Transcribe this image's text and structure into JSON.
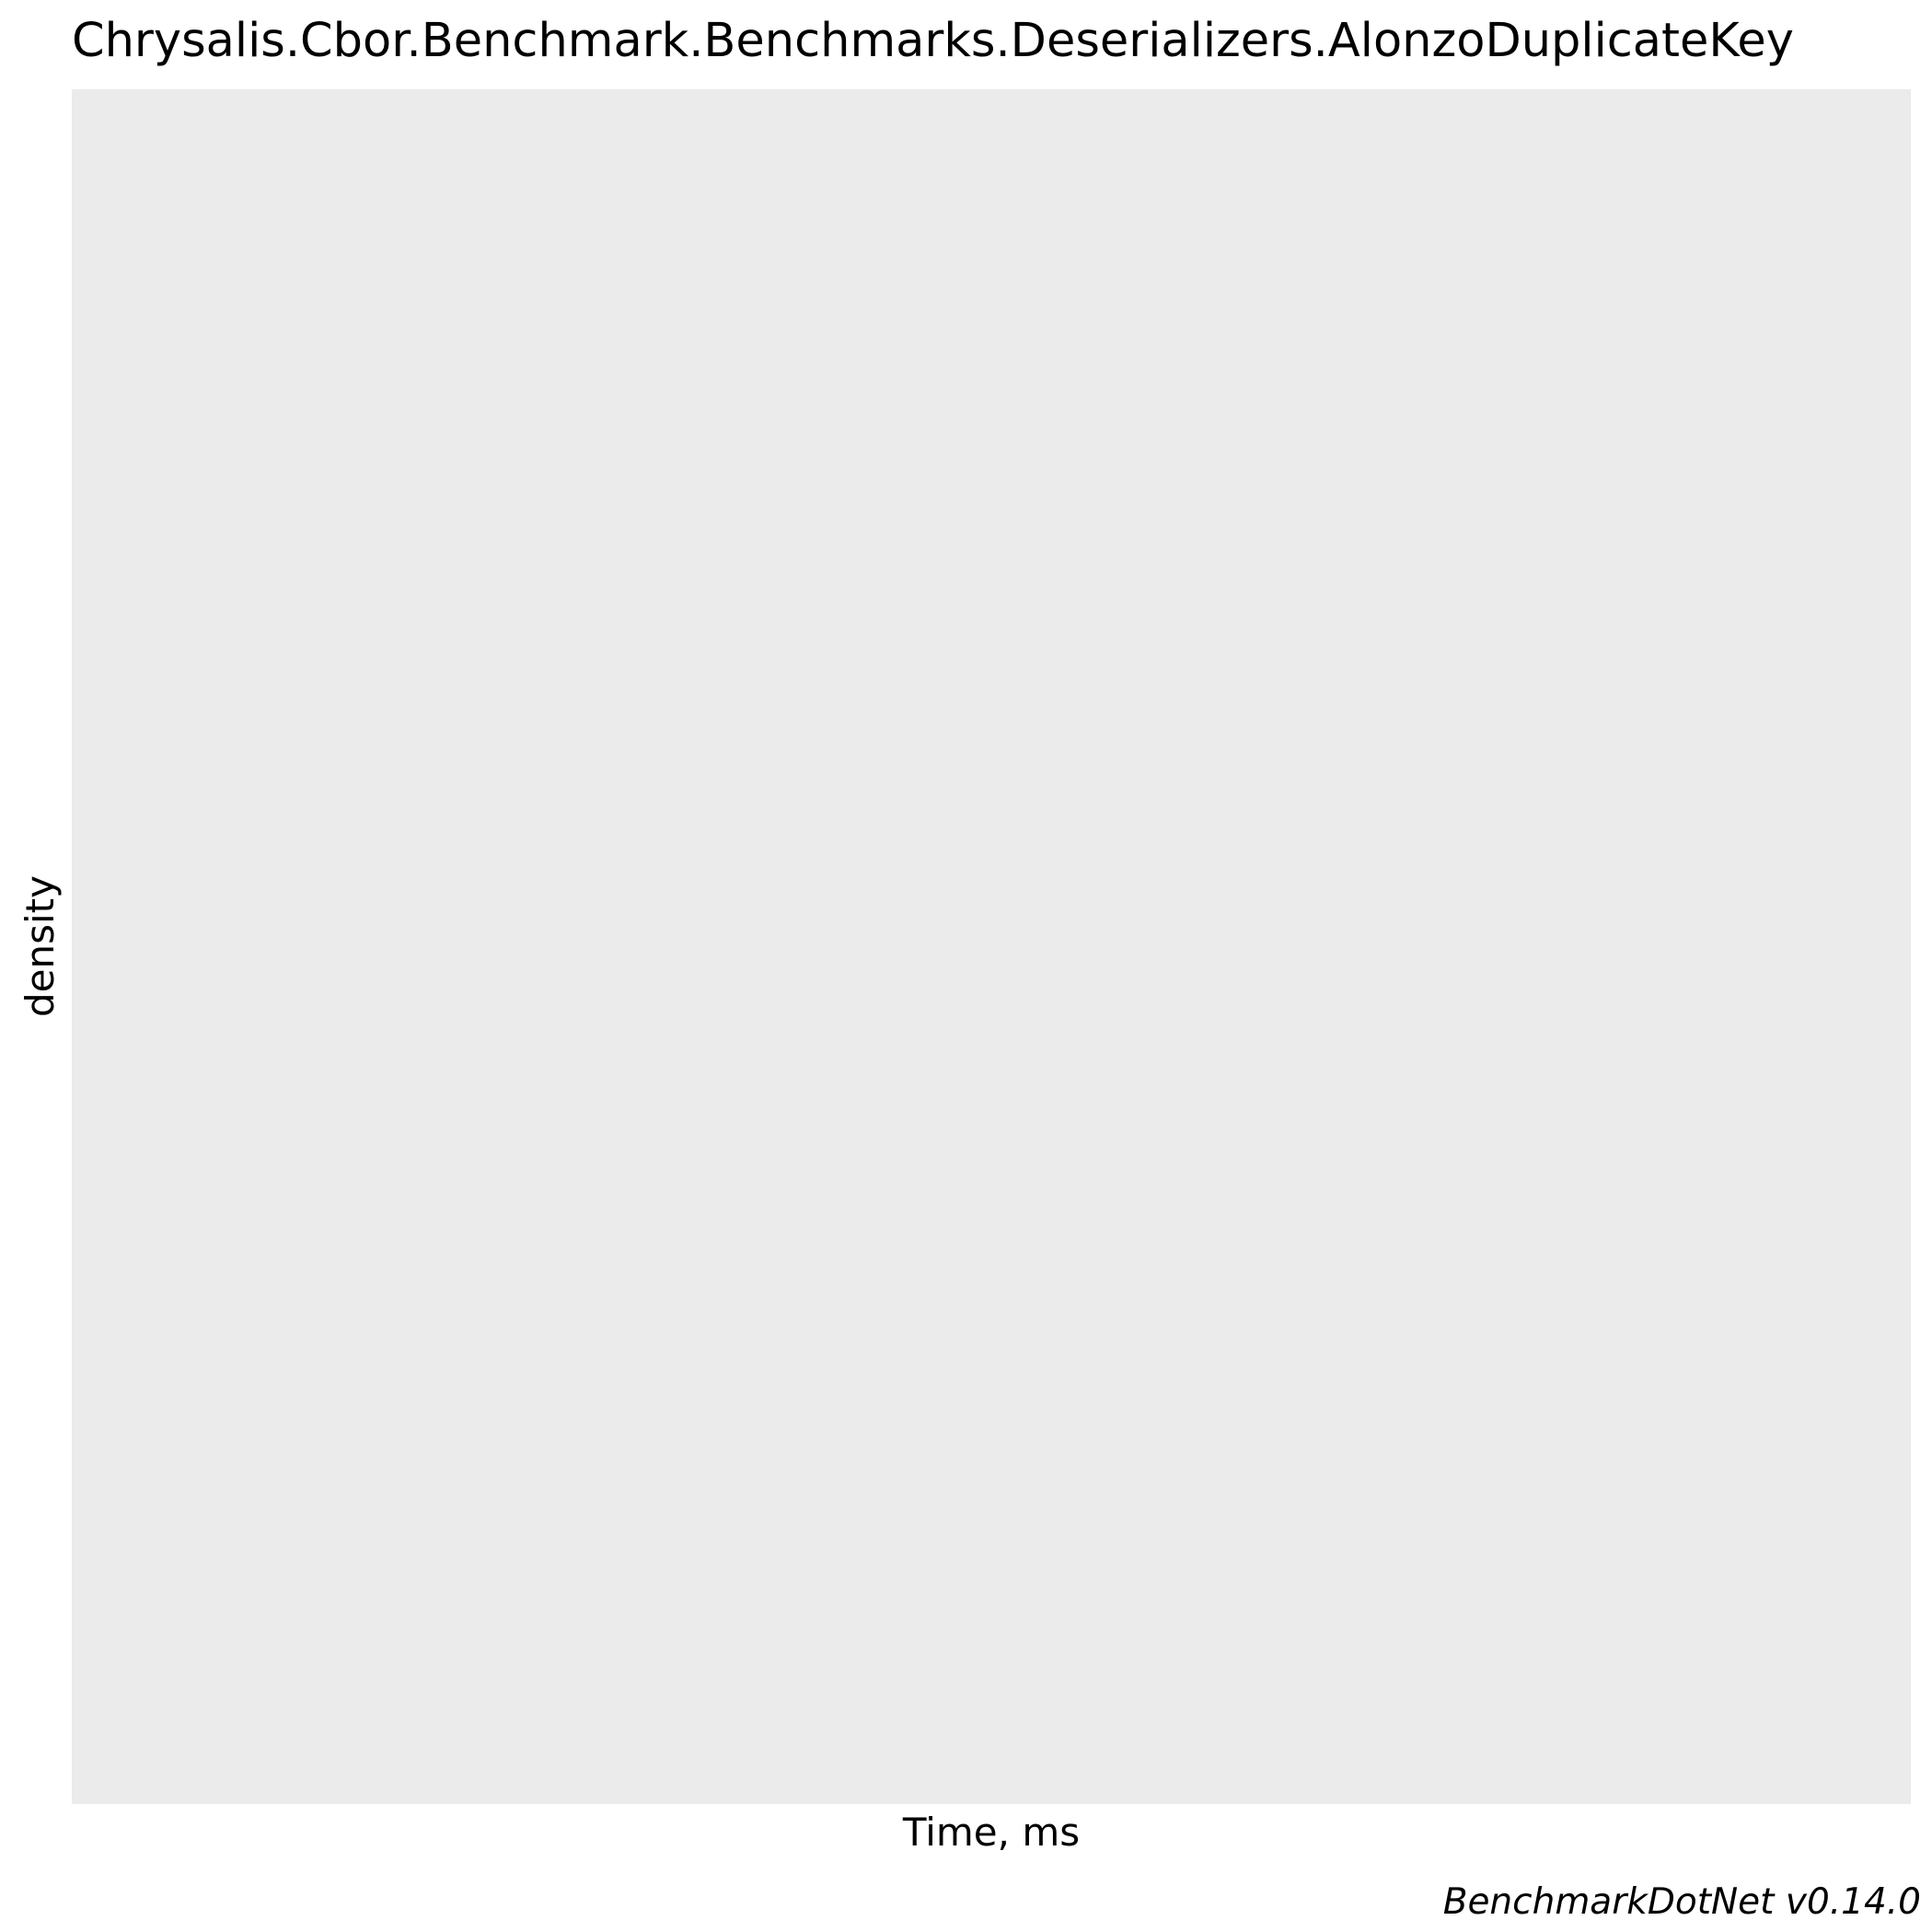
{
  "chart_data": {
    "type": "area",
    "title": "Chrysalis.Cbor.Benchmark.Benchmarks.Deserializers.AlonzoDuplicateKey",
    "xlabel": "Time, ms",
    "ylabel": "density",
    "series": [],
    "grid": false,
    "panel_color": "#ebebeb",
    "caption": "BenchmarkDotNet v0.14.0"
  }
}
